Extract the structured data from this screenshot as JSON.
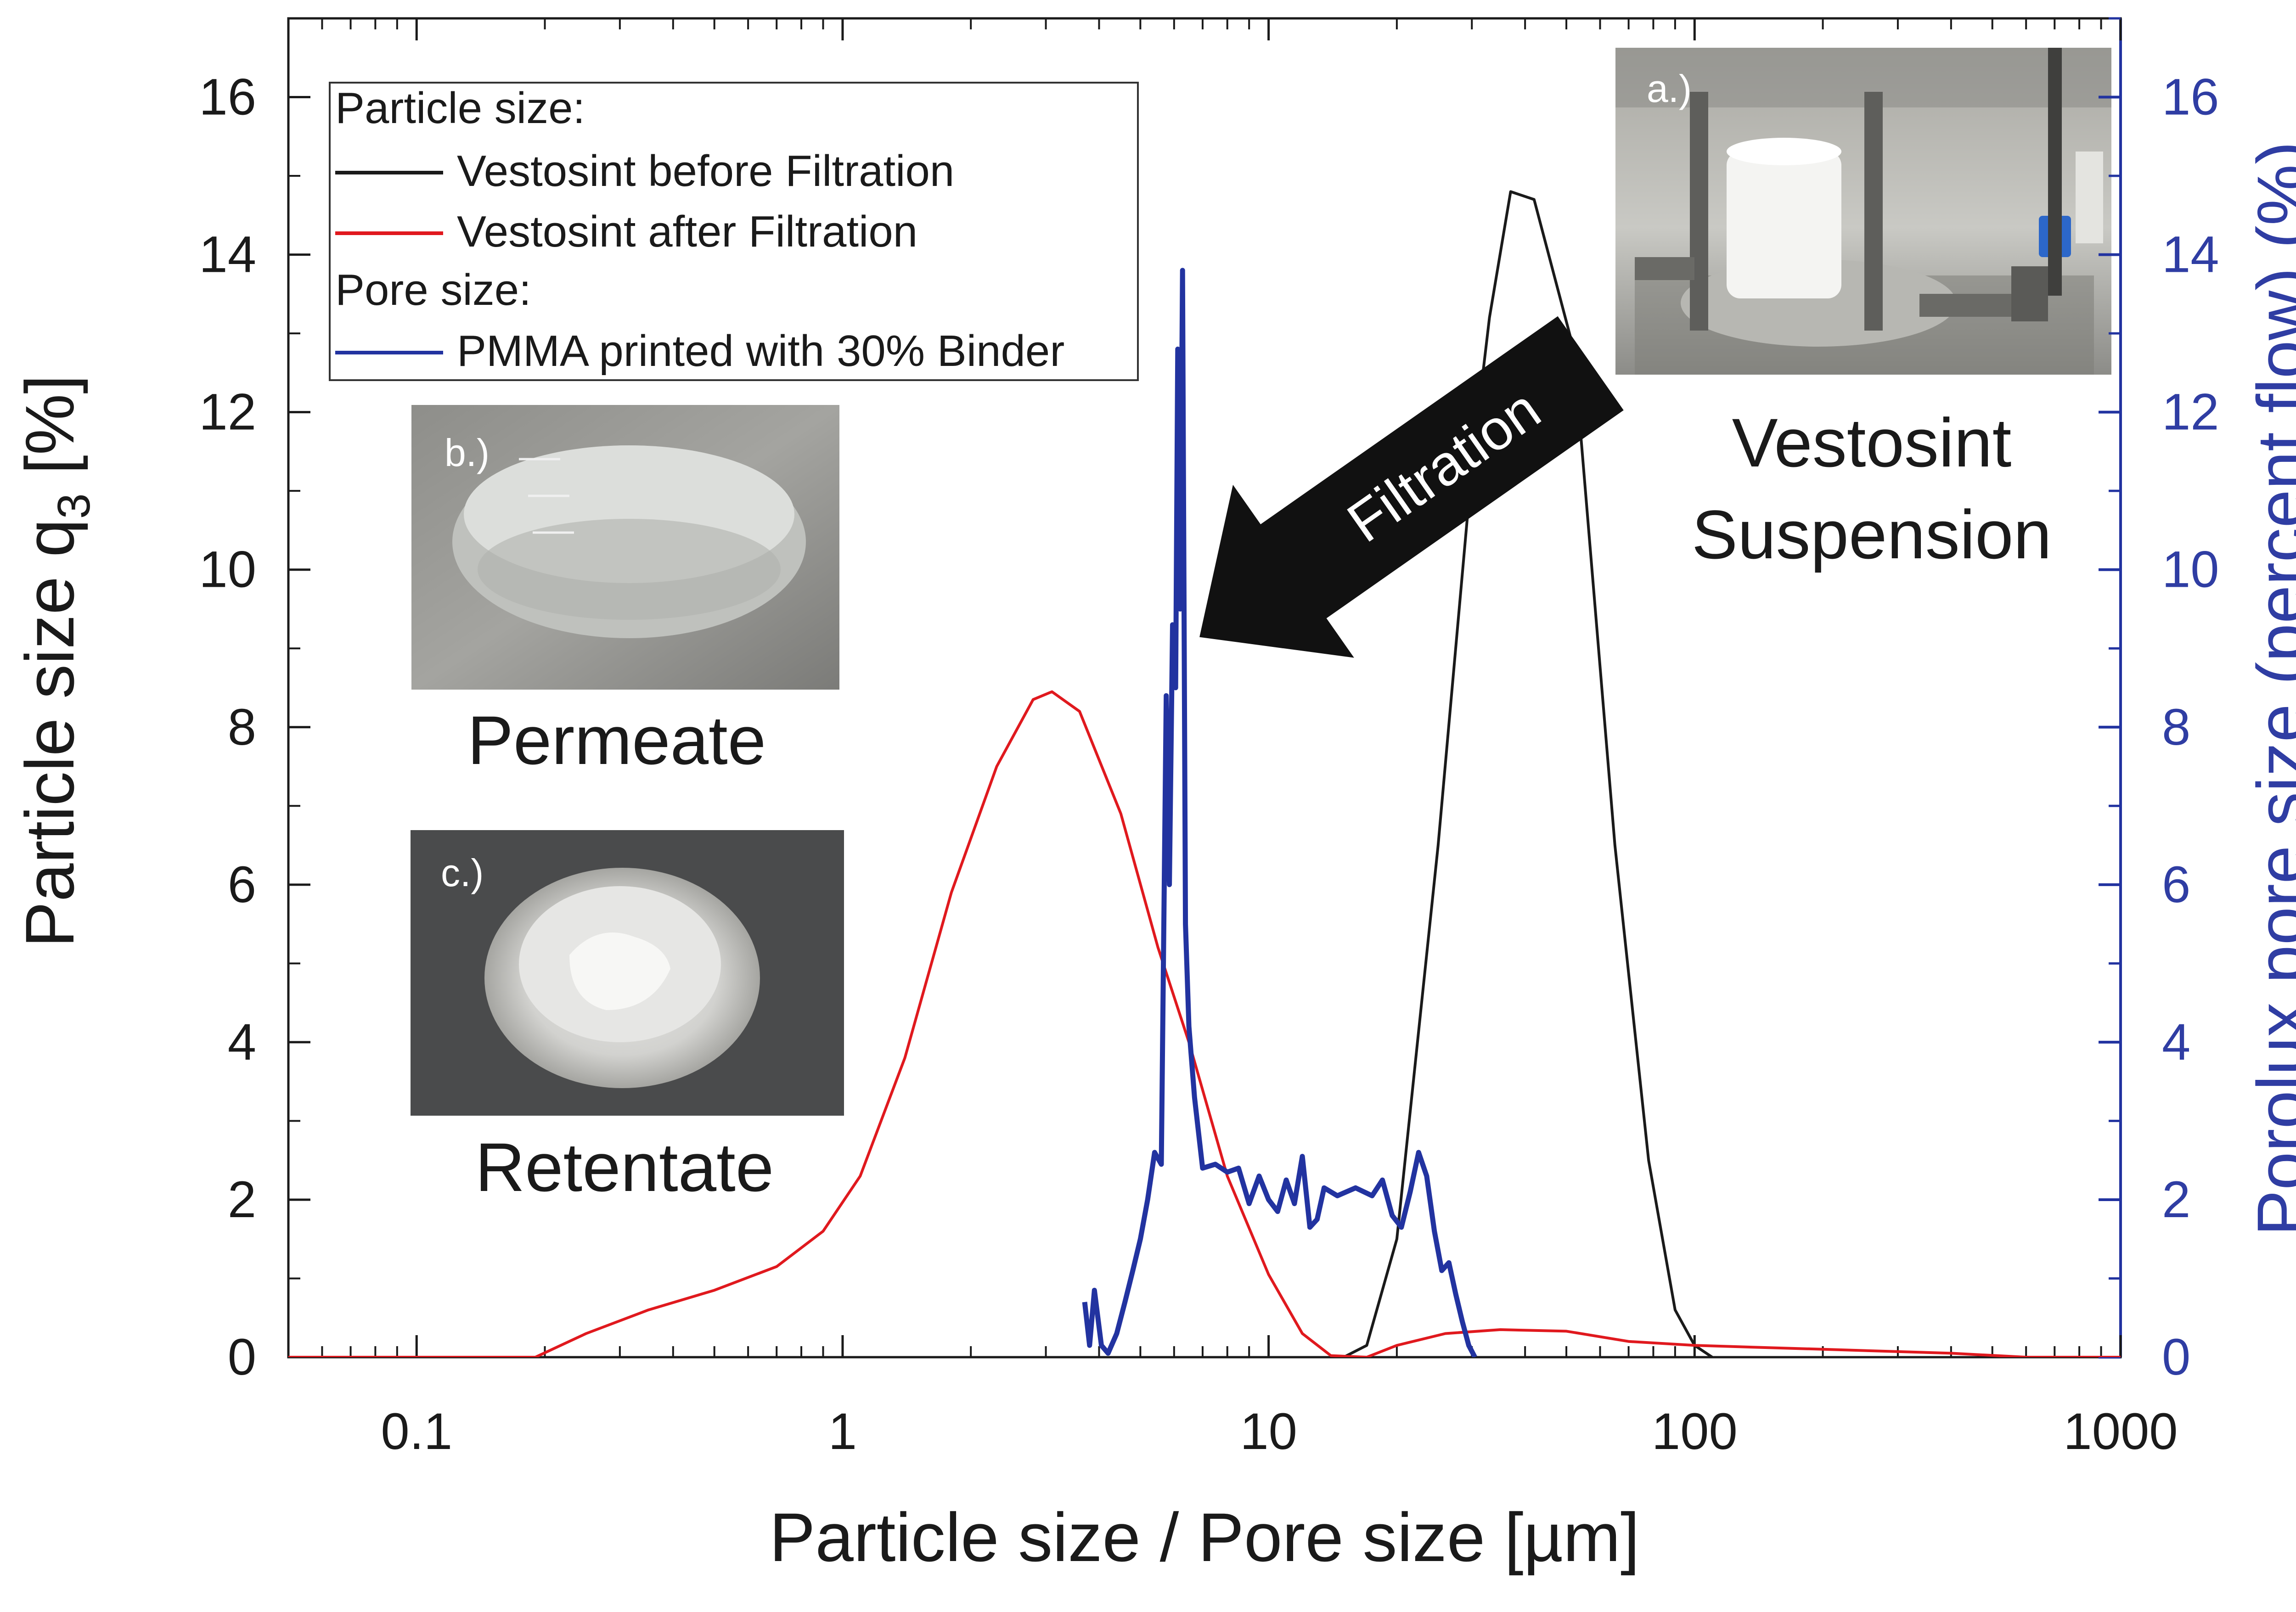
{
  "chart_data": {
    "type": "line",
    "x_scale": "log",
    "xlim": [
      0.05,
      1000
    ],
    "ylim_left": [
      0,
      17
    ],
    "ylim_right": [
      0,
      17
    ],
    "xlabel": "Particle size / Pore size [µm]",
    "ylabel_left": "Particle size q",
    "ylabel_left_sub": "3",
    "ylabel_left_unit": " [%]",
    "ylabel_right": "Porolux pore size (percent flow) (%)",
    "x_ticks": [
      {
        "v": 0.1,
        "label": "0.1"
      },
      {
        "v": 1,
        "label": "1"
      },
      {
        "v": 10,
        "label": "10"
      },
      {
        "v": 100,
        "label": "100"
      },
      {
        "v": 1000,
        "label": "1000"
      }
    ],
    "y_ticks_left": [
      {
        "v": 0,
        "label": "0"
      },
      {
        "v": 2,
        "label": "2"
      },
      {
        "v": 4,
        "label": "4"
      },
      {
        "v": 6,
        "label": "6"
      },
      {
        "v": 8,
        "label": "8"
      },
      {
        "v": 10,
        "label": "10"
      },
      {
        "v": 12,
        "label": "12"
      },
      {
        "v": 14,
        "label": "14"
      },
      {
        "v": 16,
        "label": "16"
      }
    ],
    "y_ticks_right": [
      {
        "v": 0,
        "label": "0"
      },
      {
        "v": 2,
        "label": "2"
      },
      {
        "v": 4,
        "label": "4"
      },
      {
        "v": 6,
        "label": "6"
      },
      {
        "v": 8,
        "label": "8"
      },
      {
        "v": 10,
        "label": "10"
      },
      {
        "v": 12,
        "label": "12"
      },
      {
        "v": 14,
        "label": "14"
      },
      {
        "v": 16,
        "label": "16"
      }
    ],
    "legend": {
      "position": "top-left",
      "group1_title": "Particle size:",
      "group2_title": "Pore size:",
      "entries": [
        {
          "name": "Vestosint before Filtration",
          "color": "#1a1a1a"
        },
        {
          "name": "Vestosint after Filtration",
          "color": "#e0191e"
        },
        {
          "name": "PMMA printed with 30% Binder",
          "color": "#2233a0"
        }
      ]
    },
    "series": [
      {
        "name": "Vestosint before Filtration",
        "axis": "left",
        "color": "#1a1a1a",
        "points": [
          [
            15,
            0
          ],
          [
            17,
            0.15
          ],
          [
            20,
            1.5
          ],
          [
            25,
            6.5
          ],
          [
            30,
            11.3
          ],
          [
            33,
            13.2
          ],
          [
            37,
            14.8
          ],
          [
            42,
            14.7
          ],
          [
            52,
            12.8
          ],
          [
            65,
            6.5
          ],
          [
            78,
            2.5
          ],
          [
            90,
            0.6
          ],
          [
            100,
            0.15
          ],
          [
            110,
            0
          ]
        ]
      },
      {
        "name": "Vestosint after Filtration",
        "axis": "left",
        "color": "#e0191e",
        "points": [
          [
            0.05,
            0
          ],
          [
            0.19,
            0
          ],
          [
            0.25,
            0.3
          ],
          [
            0.35,
            0.6
          ],
          [
            0.5,
            0.85
          ],
          [
            0.7,
            1.15
          ],
          [
            0.9,
            1.6
          ],
          [
            1.1,
            2.3
          ],
          [
            1.4,
            3.8
          ],
          [
            1.8,
            5.9
          ],
          [
            2.3,
            7.5
          ],
          [
            2.8,
            8.35
          ],
          [
            3.1,
            8.45
          ],
          [
            3.6,
            8.2
          ],
          [
            4.5,
            6.9
          ],
          [
            5.5,
            5.2
          ],
          [
            6.5,
            4.0
          ],
          [
            8,
            2.3
          ],
          [
            10,
            1.05
          ],
          [
            12,
            0.3
          ],
          [
            14,
            0.02
          ],
          [
            17,
            0
          ],
          [
            20,
            0.15
          ],
          [
            26,
            0.3
          ],
          [
            35,
            0.35
          ],
          [
            50,
            0.33
          ],
          [
            70,
            0.2
          ],
          [
            100,
            0.15
          ],
          [
            200,
            0.1
          ],
          [
            400,
            0.05
          ],
          [
            600,
            0
          ],
          [
            1000,
            0
          ]
        ]
      },
      {
        "name": "PMMA printed with 30% Binder",
        "axis": "right",
        "color": "#2233a0",
        "points": [
          [
            3.7,
            0.7
          ],
          [
            3.8,
            0.15
          ],
          [
            3.9,
            0.85
          ],
          [
            4.05,
            0.15
          ],
          [
            4.2,
            0.05
          ],
          [
            4.4,
            0.3
          ],
          [
            4.6,
            0.7
          ],
          [
            4.8,
            1.1
          ],
          [
            5.0,
            1.5
          ],
          [
            5.2,
            2.0
          ],
          [
            5.4,
            2.6
          ],
          [
            5.6,
            2.45
          ],
          [
            5.75,
            8.4
          ],
          [
            5.85,
            6.0
          ],
          [
            5.95,
            9.3
          ],
          [
            6.05,
            8.5
          ],
          [
            6.12,
            12.8
          ],
          [
            6.2,
            9.5
          ],
          [
            6.28,
            13.8
          ],
          [
            6.38,
            5.5
          ],
          [
            6.5,
            4.2
          ],
          [
            6.7,
            3.3
          ],
          [
            7.0,
            2.4
          ],
          [
            7.5,
            2.45
          ],
          [
            8.0,
            2.35
          ],
          [
            8.5,
            2.4
          ],
          [
            9.0,
            1.95
          ],
          [
            9.5,
            2.3
          ],
          [
            10,
            2.0
          ],
          [
            10.5,
            1.85
          ],
          [
            11,
            2.25
          ],
          [
            11.5,
            1.95
          ],
          [
            12,
            2.55
          ],
          [
            12.5,
            1.65
          ],
          [
            13,
            1.75
          ],
          [
            13.5,
            2.15
          ],
          [
            14.5,
            2.05
          ],
          [
            16,
            2.15
          ],
          [
            17.5,
            2.05
          ],
          [
            18.5,
            2.25
          ],
          [
            19.5,
            1.8
          ],
          [
            20.5,
            1.65
          ],
          [
            21.5,
            2.1
          ],
          [
            22.5,
            2.6
          ],
          [
            23.5,
            2.3
          ],
          [
            24.5,
            1.6
          ],
          [
            25.5,
            1.1
          ],
          [
            26.5,
            1.2
          ],
          [
            27.5,
            0.8
          ],
          [
            28.5,
            0.45
          ],
          [
            29.5,
            0.15
          ],
          [
            30.5,
            0
          ]
        ]
      }
    ],
    "annotations": {
      "arrow_label": "Filtration",
      "suspension_line1": "Vestosint",
      "suspension_line2": "Suspension",
      "permeate": "Permeate",
      "retentate": "Retentate",
      "photo_a_label": "a.)",
      "photo_b_label": "b.)",
      "photo_c_label": "c.)"
    }
  }
}
